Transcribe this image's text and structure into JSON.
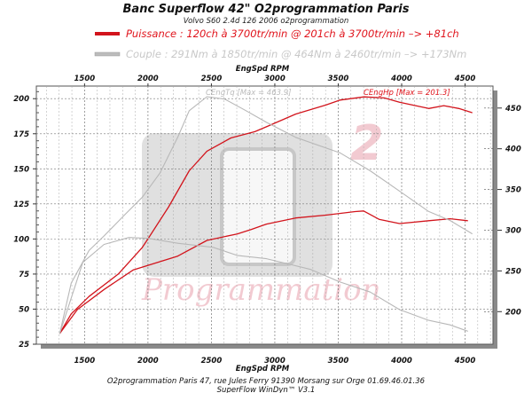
{
  "colors": {
    "power": "#d2141c",
    "torque": "#b8b8b8",
    "power_label": "#e0141c",
    "torque_label": "#c8c8c8",
    "watermark_pink": "#e8a0ac"
  },
  "chart_data": {
    "type": "line",
    "title": "Banc Superflow 42\" O2programmation Paris",
    "subtitle": "Volvo S60 2.4d 126 2006 o2programmation",
    "legend": [
      {
        "label": "Puissance : 120ch à 3700tr/min @ 201ch à 3700tr/min  –> +81ch",
        "color": "#e0141c"
      },
      {
        "label": "Couple :  291Nm à 1850tr/min @ 464Nm à 2460tr/min –> +173Nm",
        "color": "#c8c8c8"
      }
    ],
    "legend_placement": "top",
    "xlabel": "EngSpd RPM",
    "xlim": [
      1120,
      4720
    ],
    "xticks": [
      1500,
      2000,
      2500,
      3000,
      3500,
      4000,
      4500
    ],
    "y_left": {
      "lim": [
        25,
        209
      ],
      "ticks": [
        25,
        50,
        75,
        100,
        125,
        150,
        175,
        200
      ]
    },
    "y_right": {
      "lim": [
        160,
        477
      ],
      "ticks": [
        200,
        250,
        300,
        350,
        400,
        450
      ]
    },
    "grid": true,
    "annotations": [
      {
        "text": "CEngTq [Max = 463.9]",
        "series": "torque"
      },
      {
        "text": "CEngHp [Max = 201.3]",
        "series": "power"
      }
    ],
    "series": [
      {
        "kind": "power",
        "axis": "left",
        "variant": "tuned",
        "x": [
          1304,
          1395,
          1535,
          1766,
          1955,
          2003,
          2164,
          2325,
          2465,
          2654,
          2843,
          2934,
          3164,
          3402,
          3514,
          3703,
          3864,
          3983,
          4213,
          4332,
          4451,
          4556
        ],
        "y": [
          32.6,
          46.6,
          59,
          75,
          94,
          100.5,
          123,
          148.6,
          162.6,
          172,
          176.5,
          180,
          189,
          195.5,
          199,
          201.3,
          200.5,
          197.5,
          193,
          195,
          193,
          190
        ]
      },
      {
        "kind": "power",
        "axis": "left",
        "variant": "stock",
        "x": [
          1304,
          1444,
          1654,
          1885,
          2234,
          2465,
          2703,
          2815,
          2934,
          3164,
          3402,
          3633,
          3700,
          3822,
          3983,
          4213,
          4381,
          4521
        ],
        "y": [
          32.6,
          49.7,
          64,
          78,
          87.8,
          99,
          103.6,
          106.8,
          110.6,
          115,
          117,
          119.5,
          120,
          114,
          111,
          113,
          114.4,
          113
        ]
      },
      {
        "kind": "torque",
        "axis": "right",
        "variant": "tuned",
        "x": [
          1304,
          1395,
          1535,
          1654,
          1815,
          1955,
          2094,
          2234,
          2325,
          2465,
          2605,
          2773,
          2934,
          3164,
          3514,
          3752,
          3983,
          4213,
          4381,
          4556
        ],
        "y": [
          173,
          235,
          275,
          293,
          318.6,
          340.5,
          370,
          414,
          446.7,
          463.9,
          461,
          446.7,
          432.5,
          414,
          395,
          373,
          348,
          323,
          312,
          295.6
        ]
      },
      {
        "kind": "torque",
        "axis": "right",
        "variant": "stock",
        "x": [
          1304,
          1486,
          1654,
          1850,
          2003,
          2234,
          2514,
          2703,
          2934,
          3283,
          3514,
          3752,
          3983,
          4213,
          4381,
          4521
        ],
        "y": [
          173,
          260.5,
          282.6,
          291,
          290,
          284,
          279,
          269,
          265,
          251.8,
          236.4,
          224,
          202.5,
          189.3,
          183.8,
          176
        ]
      }
    ]
  },
  "watermark": {
    "text": "Programmation",
    "badge": "2"
  },
  "footer": {
    "line1": "O2programmation Paris 47, rue Jules Ferry 91390 Morsang sur Orge 01.69.46.01.36",
    "line2": "SuperFlow WinDyn™ V3.1"
  }
}
